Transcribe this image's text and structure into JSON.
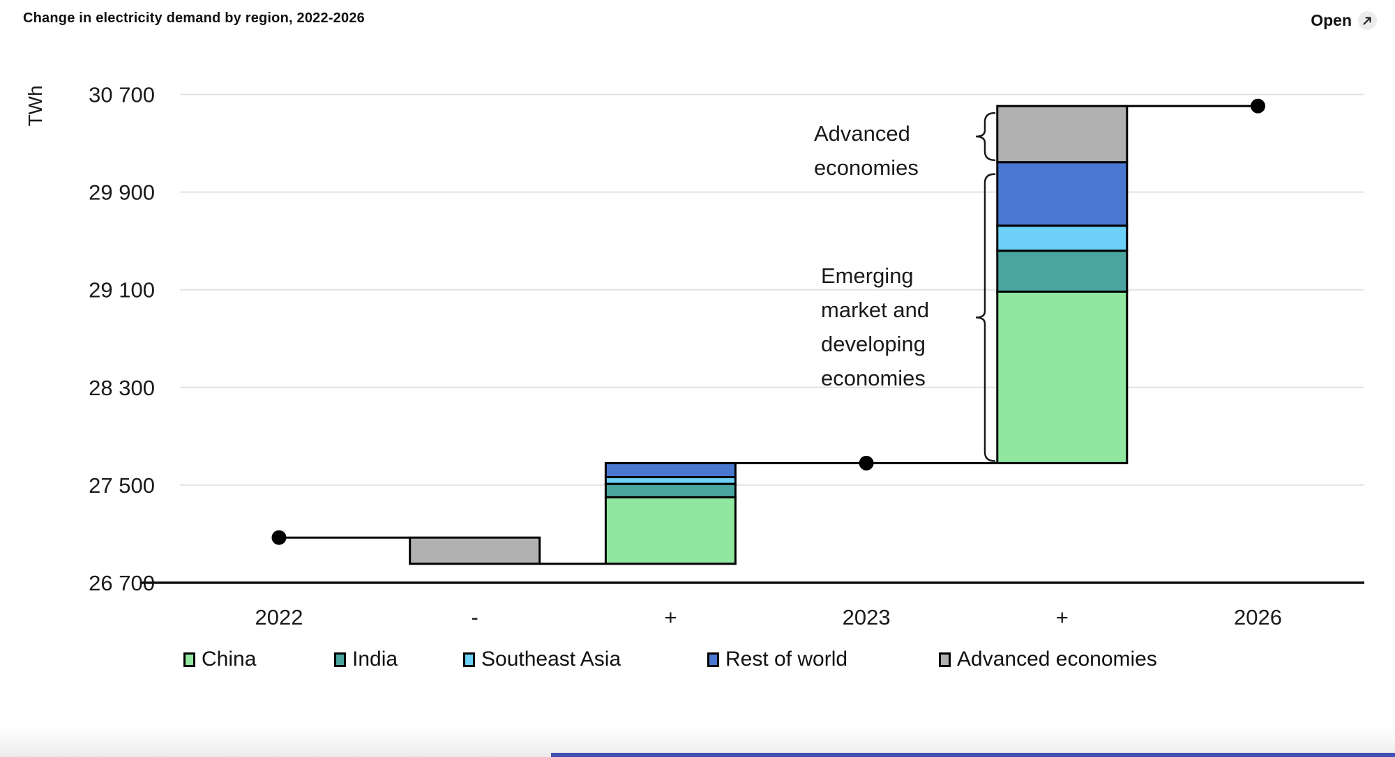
{
  "header": {
    "title": "Change in electricity demand by region, 2022-2026",
    "open_label": "Open"
  },
  "chart_data": {
    "type": "bar",
    "subtype": "waterfall-stacked",
    "title": "Change in electricity demand by region, 2022-2026",
    "unit": "TWh",
    "ylabel": "TWh",
    "ylim": [
      26700,
      30700
    ],
    "grid": true,
    "legend_position": "bottom",
    "yticks": [
      {
        "value": 26700,
        "label": "26 700"
      },
      {
        "value": 27500,
        "label": "27 500"
      },
      {
        "value": 28300,
        "label": "28 300"
      },
      {
        "value": 29100,
        "label": "29 100"
      },
      {
        "value": 29900,
        "label": "29 900"
      },
      {
        "value": 30700,
        "label": "30 700"
      }
    ],
    "categories": [
      "2022",
      "-",
      "+",
      "2023",
      "+",
      "2026"
    ],
    "level_points": [
      {
        "category": "2022",
        "category_index": 0,
        "value": 27070
      },
      {
        "category": "2023",
        "category_index": 3,
        "value": 27680
      },
      {
        "category": "2026",
        "category_index": 5,
        "value": 30605
      }
    ],
    "bars": [
      {
        "category": "-",
        "category_index": 1,
        "direction": "decrease",
        "from": 27070,
        "to": 26855,
        "segments": [
          {
            "name": "Advanced economies",
            "value": 215
          }
        ]
      },
      {
        "category": "+",
        "category_index": 2,
        "direction": "increase",
        "from": 26855,
        "to": 27680,
        "segments": [
          {
            "name": "China",
            "value": 545
          },
          {
            "name": "India",
            "value": 110
          },
          {
            "name": "Southeast Asia",
            "value": 55
          },
          {
            "name": "Rest of world",
            "value": 115
          }
        ]
      },
      {
        "category": "+",
        "category_index": 4,
        "direction": "increase",
        "from": 27680,
        "to": 30605,
        "segments": [
          {
            "name": "China",
            "value": 1405
          },
          {
            "name": "India",
            "value": 335
          },
          {
            "name": "Southeast Asia",
            "value": 205
          },
          {
            "name": "Rest of world",
            "value": 520
          },
          {
            "name": "Advanced economies",
            "value": 460
          }
        ]
      }
    ],
    "legend": [
      {
        "label": "China",
        "color": "#90e8a0"
      },
      {
        "label": "India",
        "color": "#4aa5a0"
      },
      {
        "label": "Southeast Asia",
        "color": "#6dd1f7"
      },
      {
        "label": "Rest of world",
        "color": "#4a78d0"
      },
      {
        "label": "Advanced economies",
        "color": "#b1b1b1"
      }
    ],
    "annotations": [
      {
        "id": "advanced-economies",
        "lines": [
          "Advanced",
          "economies"
        ]
      },
      {
        "id": "emerging-economies",
        "lines": [
          "Emerging",
          "market and",
          "developing",
          "economies"
        ]
      }
    ]
  },
  "colors": {
    "background": "#ffffff",
    "grid": "#e3e3e3",
    "axis": "#111111",
    "text": "#1a1a1a",
    "bar_outline": "#000000",
    "connector": "#000000",
    "dot": "#000000",
    "open_button_circle": "#ececec",
    "bottom_bar": "#3f51b5"
  }
}
